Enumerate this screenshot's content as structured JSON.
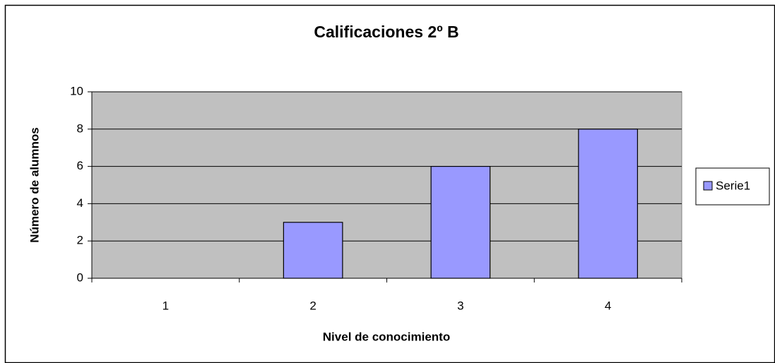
{
  "chart_data": {
    "type": "bar",
    "title": "Calificaciones 2º B",
    "x_label": "Nivel de conocimiento",
    "y_label": "Número de alumnos",
    "categories": [
      "1",
      "2",
      "3",
      "4"
    ],
    "series": [
      {
        "name": "Serie1",
        "color": "#9999ff",
        "values": [
          0,
          3,
          6,
          8
        ]
      }
    ],
    "ylim": [
      0,
      10
    ],
    "yticks": [
      0,
      2,
      4,
      6,
      8,
      10
    ],
    "grid": true,
    "legend": "right"
  }
}
